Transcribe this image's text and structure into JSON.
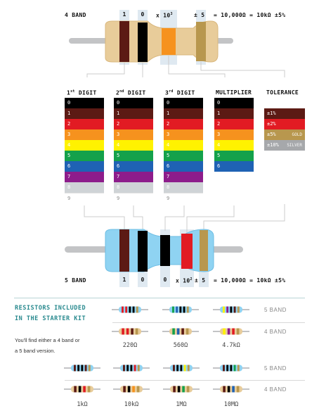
{
  "top": {
    "band_label": "4 BAND",
    "digits": [
      "1",
      "0"
    ],
    "multiplier_x": "x 10",
    "multiplier_exp": "3",
    "tolerance": "± 5",
    "equation": "= 10,000Ω = 10kΩ ±5%"
  },
  "bottom": {
    "band_label": "5 BAND",
    "digits": [
      "1",
      "0",
      "0"
    ],
    "multiplier_x": "x 10",
    "multiplier_exp": "2",
    "tolerance": "± 5",
    "equation": "= 10,000Ω = 10kΩ ±5%"
  },
  "headers": {
    "digit1": "1",
    "digit1_sup": "st",
    "digit1_rest": " DIGIT",
    "digit2": "2",
    "digit2_sup": "nd",
    "digit2_rest": " DIGIT",
    "digit3": "3",
    "digit3_sup": "rd",
    "digit3_rest": " DIGIT",
    "multiplier": "MULTIPLIER",
    "tolerance": "TOLERANCE"
  },
  "digit_colors": [
    {
      "n": "0",
      "color": "#000000",
      "fg": "#ffffff"
    },
    {
      "n": "1",
      "color": "#5c1a14",
      "fg": "#ffffff"
    },
    {
      "n": "2",
      "color": "#e21b23",
      "fg": "#ffffff"
    },
    {
      "n": "3",
      "color": "#f6921e",
      "fg": "#ffffff"
    },
    {
      "n": "4",
      "color": "#fff200",
      "fg": "#ffffff"
    },
    {
      "n": "5",
      "color": "#14a14b",
      "fg": "#ffffff"
    },
    {
      "n": "6",
      "color": "#1f62b4",
      "fg": "#ffffff"
    },
    {
      "n": "7",
      "color": "#8d1c8b",
      "fg": "#ffffff"
    },
    {
      "n": "8",
      "color": "#cfd3d6",
      "fg": "#ffffff"
    },
    {
      "n": "9",
      "color": "#ffffff",
      "fg": "#888888"
    }
  ],
  "multiplier_count": 7,
  "tolerance": [
    {
      "text": "±1%",
      "extra": "",
      "color": "#5c1a14"
    },
    {
      "text": "±2%",
      "extra": "",
      "color": "#e21b23"
    },
    {
      "text": "±5%",
      "extra": "GOLD",
      "color": "#b8974e"
    },
    {
      "text": "±10%",
      "extra": "SILVER",
      "color": "#a6a8ab"
    }
  ],
  "kit": {
    "title_line1": "RESISTORS INCLUDED",
    "title_line2": "IN THE STARTER KIT",
    "desc_line1": "You'll find either a 4 band or",
    "desc_line2": "a 5 band version.",
    "band5": "5 BAND",
    "band4": "4 BAND",
    "row1_values": [
      "220Ω",
      "560Ω",
      "4.7kΩ"
    ],
    "row2_values": [
      "1kΩ",
      "10kΩ",
      "1MΩ",
      "10MΩ"
    ]
  },
  "colors": {
    "tan_body": "#e8cc9a",
    "blue_body": "#8fd3f2",
    "lead": "#c3c4c6",
    "accent": "#2a8a8f"
  }
}
